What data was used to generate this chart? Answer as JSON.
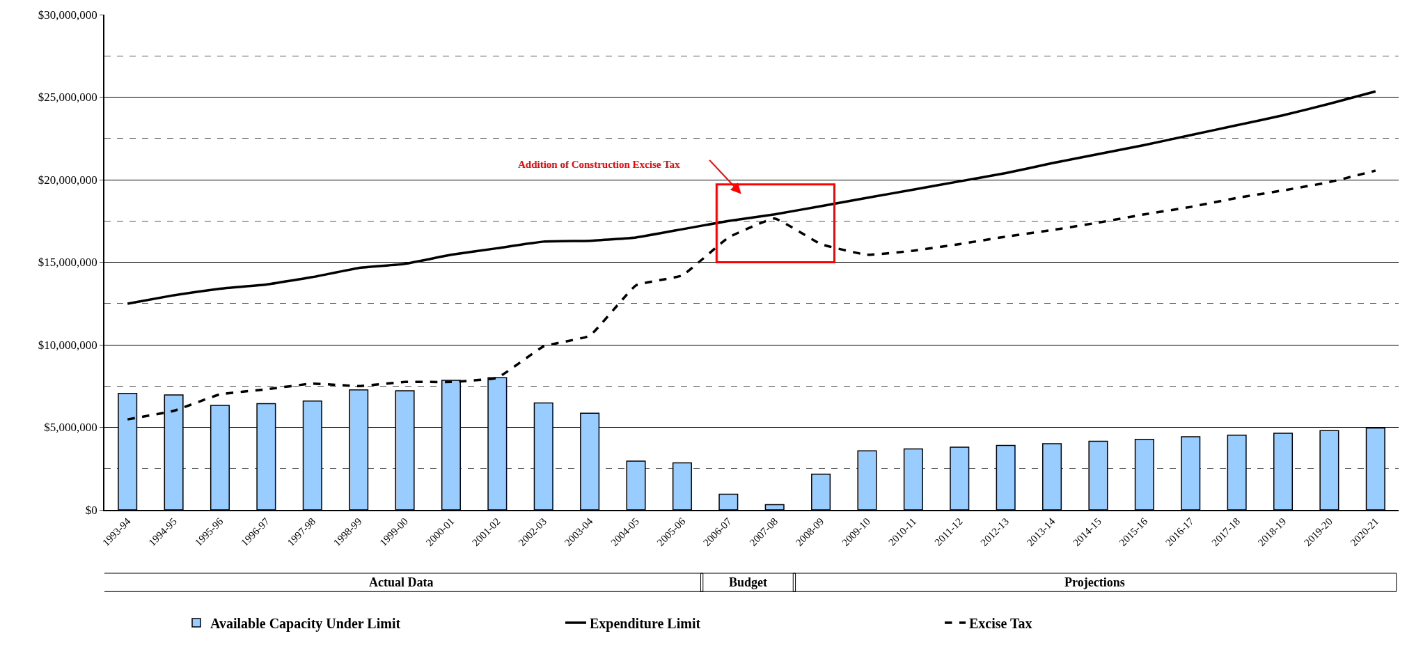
{
  "chart_data": {
    "type": "bar",
    "categories": [
      "1993-94",
      "1994-95",
      "1995-96",
      "1996-97",
      "1997-98",
      "1998-99",
      "1999-00",
      "2000-01",
      "2001-02",
      "2002-03",
      "2003-04",
      "2004-05",
      "2005-06",
      "2006-07",
      "2007-08",
      "2008-09",
      "2009-10",
      "2010-11",
      "2011-12",
      "2012-13",
      "2013-14",
      "2014-15",
      "2015-16",
      "2016-17",
      "2017-18",
      "2018-19",
      "2019-20",
      "2020-21"
    ],
    "series": [
      {
        "name": "Available Capacity Under Limit",
        "color": "#99ccff",
        "values": [
          7060000,
          6960000,
          6330000,
          6430000,
          6590000,
          7270000,
          7220000,
          7850000,
          8010000,
          6480000,
          5850000,
          2950000,
          2850000,
          950000,
          320000,
          2160000,
          3580000,
          3690000,
          3800000,
          3900000,
          4010000,
          4160000,
          4270000,
          4430000,
          4530000,
          4640000,
          4800000,
          4960000
        ]
      },
      {
        "name": "Expenditure Limit",
        "type": "line",
        "color": "#000000",
        "line_style": "solid",
        "values": [
          12490000,
          13000000,
          13400000,
          13650000,
          14100000,
          14650000,
          14900000,
          15450000,
          15850000,
          16250000,
          16300000,
          16500000,
          17000000,
          17500000,
          17900000,
          18400000,
          18900000,
          19400000,
          19900000,
          20400000,
          21000000,
          21550000,
          22100000,
          22700000,
          23300000,
          23900000,
          24600000,
          25350000
        ]
      },
      {
        "name": "Excise Tax",
        "type": "line",
        "color": "#000000",
        "line_style": "dashed",
        "values": [
          5480000,
          6000000,
          7000000,
          7300000,
          7650000,
          7500000,
          7750000,
          7750000,
          8000000,
          9900000,
          10550000,
          13600000,
          14200000,
          16500000,
          17650000,
          16100000,
          15450000,
          15700000,
          16100000,
          16550000,
          16950000,
          17400000,
          17900000,
          18350000,
          18900000,
          19350000,
          19850000,
          20550000
        ]
      }
    ],
    "ylim": [
      0,
      30000000
    ],
    "yticks": [
      {
        "value": 0,
        "label": "$0"
      },
      {
        "value": 2500000,
        "label": null
      },
      {
        "value": 5000000,
        "label": "$5,000,000"
      },
      {
        "value": 7500000,
        "label": null
      },
      {
        "value": 10000000,
        "label": "$10,000,000"
      },
      {
        "value": 12500000,
        "label": null
      },
      {
        "value": 15000000,
        "label": "$15,000,000"
      },
      {
        "value": 17500000,
        "label": null
      },
      {
        "value": 20000000,
        "label": "$20,000,000"
      },
      {
        "value": 22500000,
        "label": null
      },
      {
        "value": 25000000,
        "label": "$25,000,000"
      },
      {
        "value": 27500000,
        "label": null
      },
      {
        "value": 30000000,
        "label": "$30,000,000"
      }
    ],
    "grid": "y",
    "marker": "none",
    "legend": "bottom",
    "annotations": [
      "Addition of Construction Excise Tax",
      "Actual Data",
      "Budget",
      "Projections"
    ]
  }
}
